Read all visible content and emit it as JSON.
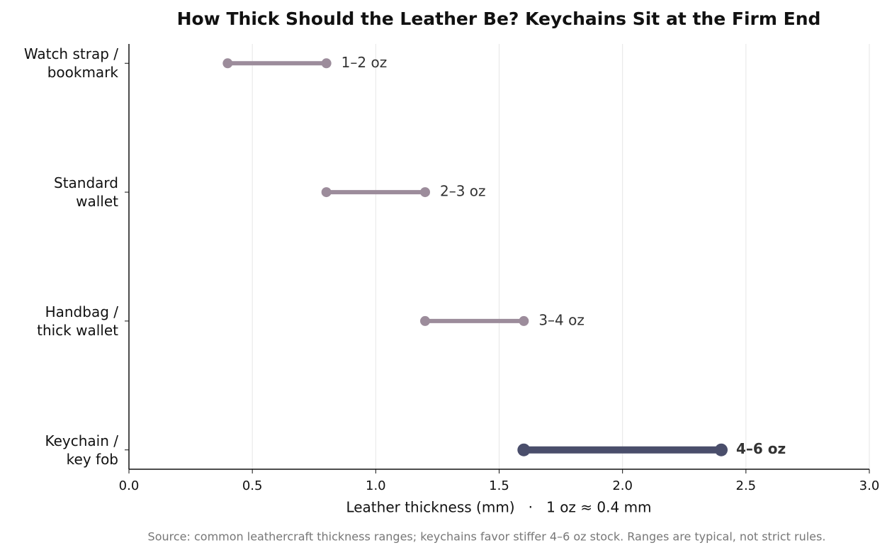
{
  "chart_data": {
    "type": "dumbbell",
    "title": "How Thick Should the Leather Be? Keychains Sit at the Firm End",
    "x_label": "Leather thickness (mm)   ·   1 oz ≈ 0.4 mm",
    "source": "Source: common leathercraft thickness ranges; keychains favor stiffer 4–6 oz stock. Ranges are typical, not strict rules.",
    "categories": [
      "Watch strap /\nbookmark",
      "Standard\nwallet",
      "Handbag /\nthick wallet",
      "Keychain /\nkey fob"
    ],
    "low": [
      0.4,
      0.8,
      1.2,
      1.6
    ],
    "high": [
      0.8,
      1.2,
      1.6,
      2.4
    ],
    "value_labels": [
      "1–2 oz",
      "2–3 oz",
      "3–4 oz",
      "4–6 oz"
    ],
    "color": "#9c8c9b",
    "highlight_color": "#4a4e6b",
    "highlight": [
      false,
      false,
      false,
      true
    ],
    "xlim": [
      0,
      3
    ],
    "xticks": [
      {
        "value": 0,
        "label": "0.0"
      },
      0.5,
      {
        "value": 1,
        "label": "1.0"
      },
      1.5,
      {
        "value": 2,
        "label": "2.0"
      },
      2.5,
      {
        "value": 3,
        "label": "3.0"
      }
    ],
    "grid": true
  }
}
